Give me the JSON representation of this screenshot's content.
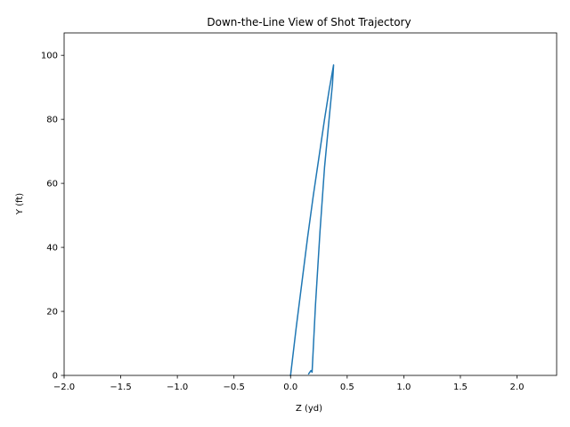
{
  "chart_data": {
    "type": "line",
    "title": "Down-the-Line View of Shot Trajectory",
    "xlabel": "Z (yd)",
    "ylabel": "Y (ft)",
    "xlim": [
      -2.0,
      2.35
    ],
    "ylim": [
      0,
      107
    ],
    "x_ticks": [
      -2.0,
      -1.5,
      -1.0,
      -0.5,
      0.0,
      0.5,
      1.0,
      1.5,
      2.0
    ],
    "x_tick_labels": [
      "−2.0",
      "−1.5",
      "−1.0",
      "−0.5",
      "0.0",
      "0.5",
      "1.0",
      "1.5",
      "2.0"
    ],
    "y_ticks": [
      0,
      20,
      40,
      60,
      80,
      100
    ],
    "y_tick_labels": [
      "0",
      "20",
      "40",
      "60",
      "80",
      "100"
    ],
    "grid": false,
    "legend": "none",
    "series": [
      {
        "color": "#1f77b4",
        "x": [
          0.0,
          0.05,
          0.1,
          0.15,
          0.2,
          0.25,
          0.3,
          0.34,
          0.37,
          0.38,
          0.37,
          0.34,
          0.3,
          0.26,
          0.22,
          0.2,
          0.19,
          0.18,
          0.16
        ],
        "y": [
          0,
          15,
          29,
          43,
          56,
          68,
          80,
          89,
          95,
          97,
          91,
          80,
          65,
          45,
          22,
          8,
          1,
          1.5,
          0.5
        ]
      }
    ]
  }
}
